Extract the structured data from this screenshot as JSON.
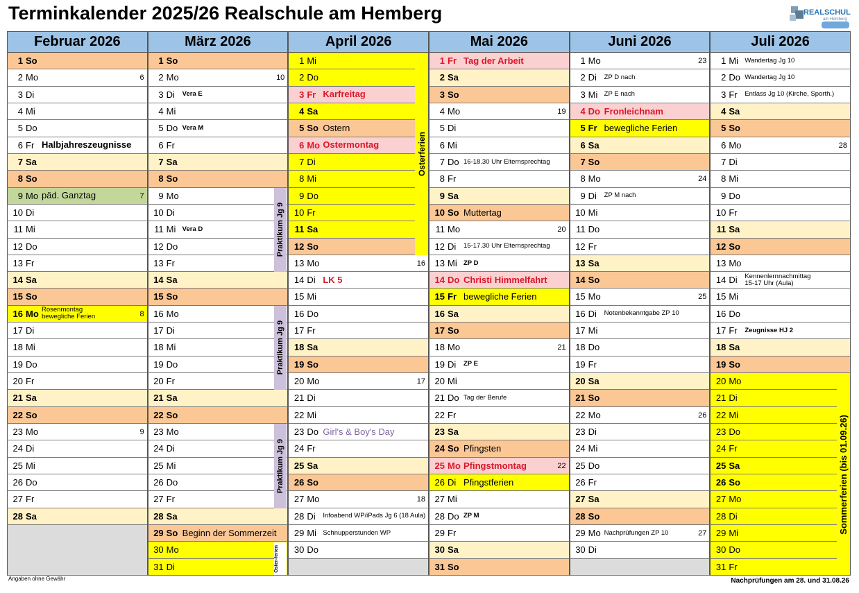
{
  "header": {
    "title": "Terminkalender 2025/26 Realschule am Hemberg",
    "logo": "REALSCHULE",
    "logo_sub": "am Hemberg"
  },
  "months": [
    {
      "name": "Februar 2026",
      "days": [
        {
          "d": 1,
          "wd": "So",
          "bg": "#fac795"
        },
        {
          "d": 2,
          "wd": "Mo",
          "kw": 6
        },
        {
          "d": 3,
          "wd": "Di"
        },
        {
          "d": 4,
          "wd": "Mi"
        },
        {
          "d": 5,
          "wd": "Do"
        },
        {
          "d": 6,
          "wd": "Fr",
          "n": "Halbjahreszeugnisse",
          "nb": true
        },
        {
          "d": 7,
          "wd": "Sa",
          "bg": "#fff2c6"
        },
        {
          "d": 8,
          "wd": "So",
          "bg": "#fac795"
        },
        {
          "d": 9,
          "wd": "Mo",
          "bg": "#c4d79b",
          "n": "päd. Ganztag",
          "kw": 7
        },
        {
          "d": 10,
          "wd": "Di"
        },
        {
          "d": 11,
          "wd": "Mi"
        },
        {
          "d": 12,
          "wd": "Do"
        },
        {
          "d": 13,
          "wd": "Fr"
        },
        {
          "d": 14,
          "wd": "Sa",
          "bg": "#fff2c6"
        },
        {
          "d": 15,
          "wd": "So",
          "bg": "#fac795"
        },
        {
          "d": 16,
          "wd": "Mo",
          "bg": "#ffff00",
          "b": true,
          "n": "Rosenmontag",
          "n2": "bewegliche Ferien",
          "ns": true,
          "kw": 8
        },
        {
          "d": 17,
          "wd": "Di"
        },
        {
          "d": 18,
          "wd": "Mi"
        },
        {
          "d": 19,
          "wd": "Do"
        },
        {
          "d": 20,
          "wd": "Fr"
        },
        {
          "d": 21,
          "wd": "Sa",
          "bg": "#fff2c6"
        },
        {
          "d": 22,
          "wd": "So",
          "bg": "#fac795"
        },
        {
          "d": 23,
          "wd": "Mo",
          "kw": 9
        },
        {
          "d": 24,
          "wd": "Di"
        },
        {
          "d": 25,
          "wd": "Mi"
        },
        {
          "d": 26,
          "wd": "Do"
        },
        {
          "d": 27,
          "wd": "Fr"
        },
        {
          "d": 28,
          "wd": "Sa",
          "bg": "#fff2c6"
        }
      ],
      "bands": []
    },
    {
      "name": "März 2026",
      "days": [
        {
          "d": 1,
          "wd": "So",
          "bg": "#fac795"
        },
        {
          "d": 2,
          "wd": "Mo",
          "kw": 10
        },
        {
          "d": 3,
          "wd": "Di",
          "n": "Vera E",
          "nb": true,
          "ns": true
        },
        {
          "d": 4,
          "wd": "Mi"
        },
        {
          "d": 5,
          "wd": "Do",
          "n": "Vera M",
          "nb": true,
          "ns": true
        },
        {
          "d": 6,
          "wd": "Fr"
        },
        {
          "d": 7,
          "wd": "Sa",
          "bg": "#fff2c6"
        },
        {
          "d": 8,
          "wd": "So",
          "bg": "#fac795"
        },
        {
          "d": 9,
          "wd": "Mo"
        },
        {
          "d": 10,
          "wd": "Di"
        },
        {
          "d": 11,
          "wd": "Mi",
          "n": "Vera D",
          "nb": true,
          "ns": true
        },
        {
          "d": 12,
          "wd": "Do"
        },
        {
          "d": 13,
          "wd": "Fr"
        },
        {
          "d": 14,
          "wd": "Sa",
          "bg": "#fff2c6"
        },
        {
          "d": 15,
          "wd": "So",
          "bg": "#fac795"
        },
        {
          "d": 16,
          "wd": "Mo"
        },
        {
          "d": 17,
          "wd": "Di"
        },
        {
          "d": 18,
          "wd": "Mi"
        },
        {
          "d": 19,
          "wd": "Do"
        },
        {
          "d": 20,
          "wd": "Fr"
        },
        {
          "d": 21,
          "wd": "Sa",
          "bg": "#fff2c6"
        },
        {
          "d": 22,
          "wd": "So",
          "bg": "#fac795"
        },
        {
          "d": 23,
          "wd": "Mo"
        },
        {
          "d": 24,
          "wd": "Di"
        },
        {
          "d": 25,
          "wd": "Mi"
        },
        {
          "d": 26,
          "wd": "Do"
        },
        {
          "d": 27,
          "wd": "Fr"
        },
        {
          "d": 28,
          "wd": "Sa",
          "bg": "#fff2c6"
        },
        {
          "d": 29,
          "wd": "So",
          "bg": "#fac795",
          "n": "Beginn der Sommerzeit"
        },
        {
          "d": 30,
          "wd": "Mo",
          "bg": "#ffff00"
        },
        {
          "d": 31,
          "wd": "Di",
          "bg": "#ffff00"
        }
      ],
      "bands": [
        "Praktikum Jg 9",
        "Praktikum Jg 9",
        "Praktikum Jg 9",
        "Oster-ferien"
      ]
    },
    {
      "name": "April 2026",
      "days": [
        {
          "d": 1,
          "wd": "Mi",
          "bg": "#ffff00"
        },
        {
          "d": 2,
          "wd": "Do",
          "bg": "#ffff00"
        },
        {
          "d": 3,
          "wd": "Fr",
          "bg": "#fbd0d0",
          "fg": "#d9172b",
          "b": true,
          "n": "Karfreitag"
        },
        {
          "d": 4,
          "wd": "Sa",
          "bg": "#ffff00"
        },
        {
          "d": 5,
          "wd": "So",
          "bg": "#fac795",
          "n": "Ostern"
        },
        {
          "d": 6,
          "wd": "Mo",
          "bg": "#fbd0d0",
          "fg": "#d9172b",
          "b": true,
          "n": "Ostermontag"
        },
        {
          "d": 7,
          "wd": "Di",
          "bg": "#ffff00"
        },
        {
          "d": 8,
          "wd": "Mi",
          "bg": "#ffff00"
        },
        {
          "d": 9,
          "wd": "Do",
          "bg": "#ffff00"
        },
        {
          "d": 10,
          "wd": "Fr",
          "bg": "#ffff00"
        },
        {
          "d": 11,
          "wd": "Sa",
          "bg": "#ffff00"
        },
        {
          "d": 12,
          "wd": "So",
          "bg": "#fac795"
        },
        {
          "d": 13,
          "wd": "Mo",
          "kw": 16
        },
        {
          "d": 14,
          "wd": "Di",
          "n": "LK 5",
          "nb": true,
          "nfg": "#d9172b"
        },
        {
          "d": 15,
          "wd": "Mi"
        },
        {
          "d": 16,
          "wd": "Do"
        },
        {
          "d": 17,
          "wd": "Fr"
        },
        {
          "d": 18,
          "wd": "Sa",
          "bg": "#fff2c6"
        },
        {
          "d": 19,
          "wd": "So",
          "bg": "#fac795"
        },
        {
          "d": 20,
          "wd": "Mo",
          "kw": 17
        },
        {
          "d": 21,
          "wd": "Di"
        },
        {
          "d": 22,
          "wd": "Mi"
        },
        {
          "d": 23,
          "wd": "Do",
          "n": "Girl's & Boy's Day",
          "nfg": "#8064a2"
        },
        {
          "d": 24,
          "wd": "Fr"
        },
        {
          "d": 25,
          "wd": "Sa",
          "bg": "#fff2c6"
        },
        {
          "d": 26,
          "wd": "So",
          "bg": "#fac795"
        },
        {
          "d": 27,
          "wd": "Mo",
          "kw": 18
        },
        {
          "d": 28,
          "wd": "Di",
          "n": "Infoabend WP/iPads Jg 6 (18 Aula)",
          "ns": true
        },
        {
          "d": 29,
          "wd": "Mi",
          "n": "Schnupperstunden WP",
          "ns": true
        },
        {
          "d": 30,
          "wd": "Do"
        }
      ],
      "bands": [
        "Osterferien"
      ]
    },
    {
      "name": "Mai 2026",
      "days": [
        {
          "d": 1,
          "wd": "Fr",
          "bg": "#fbd0d0",
          "fg": "#d9172b",
          "b": true,
          "n": "Tag der Arbeit"
        },
        {
          "d": 2,
          "wd": "Sa",
          "bg": "#fff2c6"
        },
        {
          "d": 3,
          "wd": "So",
          "bg": "#fac795"
        },
        {
          "d": 4,
          "wd": "Mo",
          "kw": 19
        },
        {
          "d": 5,
          "wd": "Di"
        },
        {
          "d": 6,
          "wd": "Mi"
        },
        {
          "d": 7,
          "wd": "Do",
          "n": "16-18.30 Uhr Elternsprechtag",
          "ns": true
        },
        {
          "d": 8,
          "wd": "Fr"
        },
        {
          "d": 9,
          "wd": "Sa",
          "bg": "#fff2c6"
        },
        {
          "d": 10,
          "wd": "So",
          "bg": "#fac795",
          "n": "Muttertag"
        },
        {
          "d": 11,
          "wd": "Mo",
          "kw": 20
        },
        {
          "d": 12,
          "wd": "Di",
          "n": "15-17.30 Uhr Elternsprechtag",
          "ns": true
        },
        {
          "d": 13,
          "wd": "Mi",
          "n": "ZP D",
          "nb": true,
          "ns": true
        },
        {
          "d": 14,
          "wd": "Do",
          "bg": "#fbd0d0",
          "fg": "#d9172b",
          "b": true,
          "n": "Christi Himmelfahrt"
        },
        {
          "d": 15,
          "wd": "Fr",
          "bg": "#ffff00",
          "b": true,
          "n": "bewegliche Ferien"
        },
        {
          "d": 16,
          "wd": "Sa",
          "bg": "#fff2c6"
        },
        {
          "d": 17,
          "wd": "So",
          "bg": "#fac795"
        },
        {
          "d": 18,
          "wd": "Mo",
          "kw": 21
        },
        {
          "d": 19,
          "wd": "Di",
          "n": "ZP E",
          "nb": true,
          "ns": true
        },
        {
          "d": 20,
          "wd": "Mi"
        },
        {
          "d": 21,
          "wd": "Do",
          "n": "Tag der Berufe",
          "ns": true
        },
        {
          "d": 22,
          "wd": "Fr"
        },
        {
          "d": 23,
          "wd": "Sa",
          "bg": "#fff2c6"
        },
        {
          "d": 24,
          "wd": "So",
          "bg": "#fac795",
          "n": "Pfingsten"
        },
        {
          "d": 25,
          "wd": "Mo",
          "bg": "#fbd0d0",
          "fg": "#d9172b",
          "b": true,
          "n": "Pfingstmontag",
          "kw": 22
        },
        {
          "d": 26,
          "wd": "Di",
          "bg": "#ffff00",
          "n": "Pfingstferien"
        },
        {
          "d": 27,
          "wd": "Mi"
        },
        {
          "d": 28,
          "wd": "Do",
          "n": "ZP M",
          "nb": true,
          "ns": true
        },
        {
          "d": 29,
          "wd": "Fr"
        },
        {
          "d": 30,
          "wd": "Sa",
          "bg": "#fff2c6"
        },
        {
          "d": 31,
          "wd": "So",
          "bg": "#fac795"
        }
      ],
      "bands": []
    },
    {
      "name": "Juni 2026",
      "days": [
        {
          "d": 1,
          "wd": "Mo",
          "kw": 23
        },
        {
          "d": 2,
          "wd": "Di",
          "n": "ZP D nach",
          "ns": true
        },
        {
          "d": 3,
          "wd": "Mi",
          "n": "ZP E nach",
          "ns": true
        },
        {
          "d": 4,
          "wd": "Do",
          "bg": "#fbd0d0",
          "fg": "#d9172b",
          "b": true,
          "n": "Fronleichnam"
        },
        {
          "d": 5,
          "wd": "Fr",
          "bg": "#ffff00",
          "b": true,
          "n": "bewegliche Ferien"
        },
        {
          "d": 6,
          "wd": "Sa",
          "bg": "#fff2c6"
        },
        {
          "d": 7,
          "wd": "So",
          "bg": "#fac795"
        },
        {
          "d": 8,
          "wd": "Mo",
          "kw": 24
        },
        {
          "d": 9,
          "wd": "Di",
          "n": "ZP M nach",
          "ns": true
        },
        {
          "d": 10,
          "wd": "Mi"
        },
        {
          "d": 11,
          "wd": "Do"
        },
        {
          "d": 12,
          "wd": "Fr"
        },
        {
          "d": 13,
          "wd": "Sa",
          "bg": "#fff2c6"
        },
        {
          "d": 14,
          "wd": "So",
          "bg": "#fac795"
        },
        {
          "d": 15,
          "wd": "Mo",
          "kw": 25
        },
        {
          "d": 16,
          "wd": "Di",
          "n": "Notenbekanntgabe ZP 10",
          "ns": true
        },
        {
          "d": 17,
          "wd": "Mi"
        },
        {
          "d": 18,
          "wd": "Do"
        },
        {
          "d": 19,
          "wd": "Fr"
        },
        {
          "d": 20,
          "wd": "Sa",
          "bg": "#fff2c6"
        },
        {
          "d": 21,
          "wd": "So",
          "bg": "#fac795"
        },
        {
          "d": 22,
          "wd": "Mo",
          "kw": 26
        },
        {
          "d": 23,
          "wd": "Di"
        },
        {
          "d": 24,
          "wd": "Mi"
        },
        {
          "d": 25,
          "wd": "Do"
        },
        {
          "d": 26,
          "wd": "Fr"
        },
        {
          "d": 27,
          "wd": "Sa",
          "bg": "#fff2c6"
        },
        {
          "d": 28,
          "wd": "So",
          "bg": "#fac795"
        },
        {
          "d": 29,
          "wd": "Mo",
          "n": "Nachprüfungen ZP 10",
          "ns": true,
          "kw": 27
        },
        {
          "d": 30,
          "wd": "Di"
        }
      ],
      "bands": []
    },
    {
      "name": "Juli 2026",
      "days": [
        {
          "d": 1,
          "wd": "Mi",
          "n": "Wandertag Jg 10",
          "ns": true
        },
        {
          "d": 2,
          "wd": "Do",
          "n": "Wandertag Jg 10",
          "ns": true
        },
        {
          "d": 3,
          "wd": "Fr",
          "n": "Entlass Jg 10 (Kirche, Sporth.)",
          "ns": true
        },
        {
          "d": 4,
          "wd": "Sa",
          "bg": "#fff2c6"
        },
        {
          "d": 5,
          "wd": "So",
          "bg": "#fac795"
        },
        {
          "d": 6,
          "wd": "Mo",
          "kw": 28
        },
        {
          "d": 7,
          "wd": "Di"
        },
        {
          "d": 8,
          "wd": "Mi"
        },
        {
          "d": 9,
          "wd": "Do"
        },
        {
          "d": 10,
          "wd": "Fr"
        },
        {
          "d": 11,
          "wd": "Sa",
          "bg": "#fff2c6"
        },
        {
          "d": 12,
          "wd": "So",
          "bg": "#fac795"
        },
        {
          "d": 13,
          "wd": "Mo"
        },
        {
          "d": 14,
          "wd": "Di",
          "n": "Kennenlernnachmittag",
          "n2": "15-17 Uhr (Aula)",
          "ns": true
        },
        {
          "d": 15,
          "wd": "Mi"
        },
        {
          "d": 16,
          "wd": "Do"
        },
        {
          "d": 17,
          "wd": "Fr",
          "n": "Zeugnisse HJ 2",
          "nb": true,
          "ns": true
        },
        {
          "d": 18,
          "wd": "Sa",
          "bg": "#fff2c6"
        },
        {
          "d": 19,
          "wd": "So",
          "bg": "#fac795"
        },
        {
          "d": 20,
          "wd": "Mo",
          "bg": "#ffff00"
        },
        {
          "d": 21,
          "wd": "Di",
          "bg": "#ffff00"
        },
        {
          "d": 22,
          "wd": "Mi",
          "bg": "#ffff00"
        },
        {
          "d": 23,
          "wd": "Do",
          "bg": "#ffff00"
        },
        {
          "d": 24,
          "wd": "Fr",
          "bg": "#ffff00"
        },
        {
          "d": 25,
          "wd": "Sa",
          "bg": "#ffff00"
        },
        {
          "d": 26,
          "wd": "So",
          "bg": "#ffff00"
        },
        {
          "d": 27,
          "wd": "Mo",
          "bg": "#ffff00"
        },
        {
          "d": 28,
          "wd": "Di",
          "bg": "#ffff00"
        },
        {
          "d": 29,
          "wd": "Mi",
          "bg": "#ffff00"
        },
        {
          "d": 30,
          "wd": "Do",
          "bg": "#ffff00"
        },
        {
          "d": 31,
          "wd": "Fr",
          "bg": "#ffff00"
        }
      ],
      "bands": [
        "Sommerferien (bis 01.09.26)"
      ]
    }
  ],
  "footer": {
    "left": "Angaben ohne Gewähr",
    "right": "Nachprüfungen am 28. und 31.08.26"
  }
}
